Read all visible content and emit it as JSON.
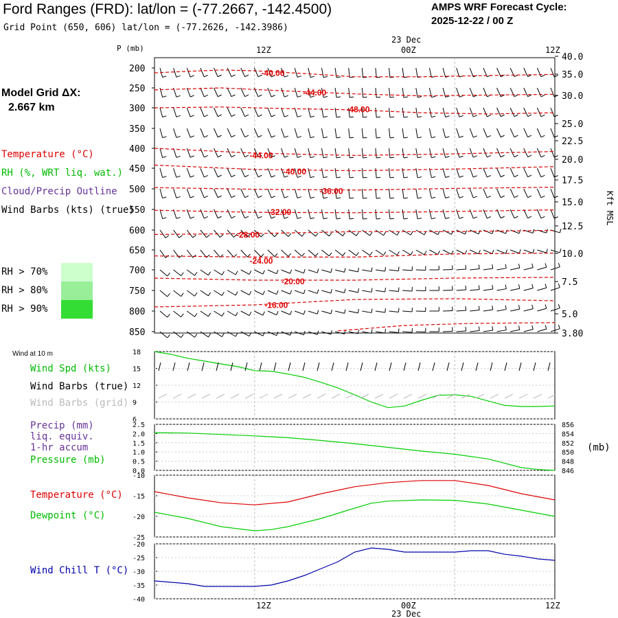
{
  "header": {
    "title": "Ford Ranges (FRD):  lat/lon = (-77.2667, -142.4500)",
    "grid_point": "Grid Point (650, 606) lat/lon = (-77.2626, -142.3986)",
    "cycle_title": "AMPS WRF Forecast Cycle:",
    "cycle_value": "2025-12-22 / 00  Z",
    "model_grid_title": "Model Grid ΔX:",
    "model_grid_value": "2.667 km"
  },
  "legend": {
    "temperature": "Temperature (°C)",
    "rh": "RH (%, WRT liq. wat.)",
    "cloud": "Cloud/Precip Outline",
    "wind": "Wind Barbs (kts) (true)",
    "rh_levels": [
      "RH > 70%",
      "RH > 80%",
      "RH > 90%"
    ],
    "rh_colors": [
      "#ccffcc",
      "#99ee99",
      "#33dd33"
    ]
  },
  "time_axis": {
    "top_date": "23 Dec",
    "bottom_date": "23 Dec",
    "ticks": [
      "12Z",
      "00Z",
      "12Z"
    ]
  },
  "chart_data": [
    {
      "type": "line",
      "title": "",
      "ylabel": "P (mb)",
      "y_right_label": "Kft MSL",
      "ylim": [
        850,
        185
      ],
      "y_ticks": [
        "200",
        "250",
        "300",
        "350",
        "400",
        "450",
        "500",
        "550",
        "600",
        "650",
        "700",
        "750",
        "800",
        "850"
      ],
      "y_right_ticks": [
        "40.0",
        "35.0",
        "30.0",
        "25.0",
        "22.5",
        "20.0",
        "17.5",
        "15.0",
        "12.5",
        "10.0",
        "7.5",
        "5.0",
        "3.80"
      ],
      "xlim": [
        0,
        24
      ],
      "isotherm_labels": [
        {
          "label": "-40.00",
          "x": 6.4,
          "p": 213
        },
        {
          "label": "-44.00",
          "x": 8.9,
          "p": 262
        },
        {
          "label": "-48.00",
          "x": 11.5,
          "p": 304
        },
        {
          "label": "-44.00",
          "x": 5.7,
          "p": 418
        },
        {
          "label": "-40.00",
          "x": 7.7,
          "p": 458
        },
        {
          "label": "-36.00",
          "x": 9.9,
          "p": 506
        },
        {
          "label": "-32.00",
          "x": 6.8,
          "p": 557
        },
        {
          "label": "-28.00",
          "x": 4.9,
          "p": 612
        },
        {
          "label": "-24.00",
          "x": 5.7,
          "p": 678
        },
        {
          "label": "-20.00",
          "x": 7.6,
          "p": 728
        },
        {
          "label": "-16.00",
          "x": 6.6,
          "p": 786
        }
      ],
      "isotherms": [
        {
          "x": [
            0,
            4,
            6,
            9,
            12,
            16,
            20,
            24
          ],
          "p": [
            212,
            205,
            207,
            214,
            222,
            222,
            219,
            216
          ]
        },
        {
          "x": [
            0,
            4,
            8,
            12,
            16,
            20,
            24
          ],
          "p": [
            255,
            250,
            258,
            265,
            270,
            268,
            266
          ]
        },
        {
          "x": [
            0,
            4,
            8,
            12,
            16,
            20,
            24
          ],
          "p": [
            300,
            298,
            302,
            305,
            312,
            315,
            312
          ]
        },
        {
          "x": [
            0,
            6,
            12,
            18,
            24
          ],
          "p": [
            400,
            412,
            418,
            414,
            408
          ]
        },
        {
          "x": [
            0,
            6,
            12,
            18,
            24
          ],
          "p": [
            442,
            453,
            456,
            452,
            446
          ]
        },
        {
          "x": [
            0,
            6,
            12,
            18,
            24
          ],
          "p": [
            497,
            501,
            503,
            499,
            496
          ]
        },
        {
          "x": [
            0,
            6,
            12,
            18,
            24
          ],
          "p": [
            552,
            557,
            558,
            555,
            551
          ]
        },
        {
          "x": [
            0,
            6,
            12,
            18,
            24
          ],
          "p": [
            611,
            609,
            604,
            604,
            601
          ]
        },
        {
          "x": [
            0,
            6,
            12,
            18,
            24
          ],
          "p": [
            665,
            668,
            668,
            660,
            658
          ]
        },
        {
          "x": [
            0,
            6,
            12,
            18,
            24
          ],
          "p": [
            720,
            725,
            725,
            720,
            718
          ]
        },
        {
          "x": [
            0,
            6,
            12,
            18,
            24
          ],
          "p": [
            790,
            785,
            772,
            770,
            775
          ]
        },
        {
          "x": [
            11,
            15,
            19,
            24
          ],
          "p": [
            848,
            835,
            830,
            828
          ]
        }
      ]
    },
    {
      "type": "line",
      "title": "Wind at 10 m",
      "ylim": [
        6,
        18
      ],
      "y_ticks": [
        "18",
        "15",
        "12",
        "9",
        "6"
      ],
      "series": [
        {
          "name": "Wind Spd (kts)",
          "color": "#00cc00",
          "x": [
            0,
            1,
            2,
            3,
            4,
            5,
            6,
            7,
            8,
            9,
            10,
            11,
            12,
            13,
            14,
            15,
            16,
            17,
            18,
            19,
            20,
            21,
            22,
            23,
            24
          ],
          "values": [
            18,
            17.5,
            16.8,
            16.3,
            15.8,
            15.3,
            14.6,
            14.5,
            14.0,
            13.4,
            12.5,
            11.5,
            10.3,
            9.0,
            8.0,
            8.3,
            9.3,
            10.2,
            10.3,
            10.0,
            9.2,
            8.4,
            8.2,
            8.2,
            8.3
          ]
        }
      ],
      "legend_extra": [
        "Wind Barbs (true)",
        "Wind Barbs (grid)"
      ]
    },
    {
      "type": "line",
      "ylim": [
        0,
        2.5
      ],
      "y_ticks": [
        "2.5",
        "2.0",
        "1.5",
        "1.0",
        "0.5",
        "0.0"
      ],
      "y_right_ticks": [
        "856",
        "854",
        "852",
        "850",
        "848",
        "846"
      ],
      "y_right_label": "(mb)",
      "legend": [
        "Precip (mm)",
        "liq. equiv.",
        "1-hr accum",
        "Pressure (mb)"
      ],
      "series": [
        {
          "name": "Pressure (mb)",
          "color": "#00cc00",
          "x": [
            0,
            2,
            4,
            6,
            8,
            10,
            12,
            14,
            16,
            18,
            20,
            22,
            23,
            24
          ],
          "values": [
            854.2,
            854.1,
            853.8,
            853.5,
            853.1,
            852.5,
            851.8,
            851.0,
            850.2,
            849.5,
            848.5,
            846.6,
            846.2,
            846.0
          ]
        }
      ]
    },
    {
      "type": "line",
      "ylim": [
        -25,
        -10
      ],
      "y_ticks": [
        "-10",
        "-15",
        "-20",
        "-25"
      ],
      "series": [
        {
          "name": "Temperature (°C)",
          "color": "#dd0000",
          "x": [
            0,
            2,
            4,
            6,
            8,
            10,
            12,
            14,
            16,
            18,
            20,
            22,
            24
          ],
          "values": [
            -14.0,
            -15.5,
            -16.7,
            -17.2,
            -16.5,
            -14.5,
            -12.8,
            -11.8,
            -11.3,
            -11.3,
            -12.5,
            -14.5,
            -16.0
          ]
        },
        {
          "name": "Dewpoint (°C)",
          "color": "#00cc00",
          "x": [
            0,
            2,
            4,
            6,
            7,
            8,
            10,
            12,
            13,
            14,
            16,
            18,
            20,
            22,
            24
          ],
          "values": [
            -19.0,
            -20.5,
            -22.5,
            -23.5,
            -23.2,
            -22.5,
            -20.5,
            -18.0,
            -16.8,
            -16.3,
            -16.0,
            -16.1,
            -17.0,
            -18.5,
            -20.0
          ]
        }
      ]
    },
    {
      "type": "line",
      "ylim": [
        -40,
        -20
      ],
      "y_ticks": [
        "-20",
        "-25",
        "-30",
        "-35",
        "-40"
      ],
      "series": [
        {
          "name": "Wind Chill T (°C)",
          "color": "#0000aa",
          "x": [
            0,
            1,
            2,
            3,
            4,
            5,
            6,
            7,
            8,
            9,
            10,
            11,
            12,
            13,
            14,
            15,
            16,
            17,
            18,
            19,
            20,
            21,
            22,
            23,
            24
          ],
          "values": [
            -33.5,
            -34.0,
            -34.5,
            -35.5,
            -35.5,
            -35.5,
            -35.5,
            -35.0,
            -33.5,
            -31.5,
            -29.0,
            -26.5,
            -23.0,
            -21.5,
            -22.0,
            -23.0,
            -23.0,
            -23.0,
            -23.0,
            -22.5,
            -22.5,
            -23.8,
            -24.5,
            -25.5,
            -26.0
          ]
        }
      ]
    }
  ]
}
